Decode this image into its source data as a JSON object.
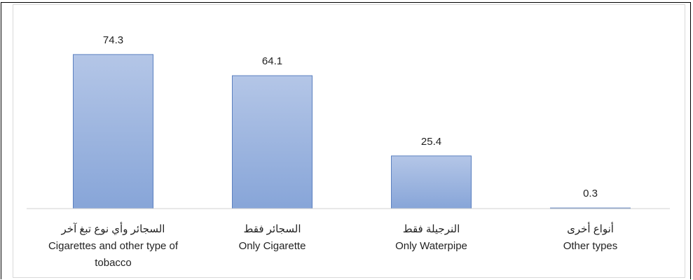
{
  "chart_data": {
    "type": "bar",
    "categories": [
      {
        "ar": "السجائر وأي نوع تبغ آخر",
        "en": "Cigarettes and other type of tobacco"
      },
      {
        "ar": "السجائر فقط",
        "en": "Only Cigarette"
      },
      {
        "ar": "النرجيلة فقط",
        "en": "Only Waterpipe"
      },
      {
        "ar": "أنواع أخرى",
        "en": "Other types"
      }
    ],
    "values": [
      74.3,
      64.1,
      25.4,
      0.3
    ],
    "color": "#9cb3dc",
    "ylim": [
      0,
      80
    ]
  }
}
